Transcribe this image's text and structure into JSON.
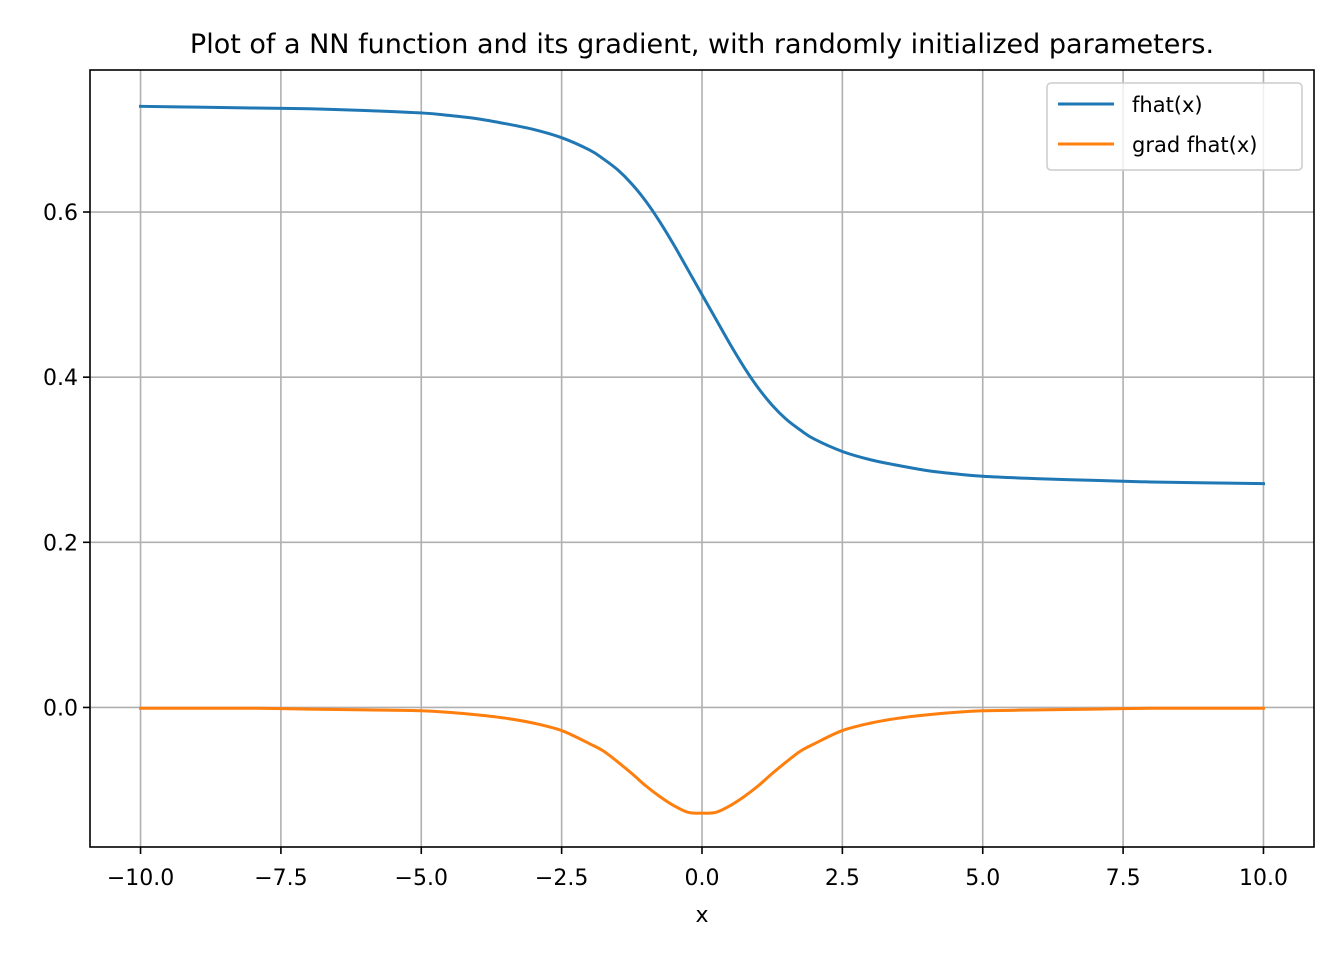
{
  "chart_data": {
    "type": "line",
    "title": "Plot of a NN function and its gradient, with randomly initialized parameters.",
    "xlabel": "x",
    "ylabel": "",
    "xlim": [
      -10.9,
      10.9
    ],
    "ylim": [
      -0.169,
      0.772
    ],
    "xticks": [
      -10.0,
      -7.5,
      -5.0,
      -2.5,
      0.0,
      2.5,
      5.0,
      7.5,
      10.0
    ],
    "xtick_labels": [
      "−10.0",
      "−7.5",
      "−5.0",
      "−2.5",
      "0.0",
      "2.5",
      "5.0",
      "7.5",
      "10.0"
    ],
    "yticks": [
      0.0,
      0.2,
      0.4,
      0.6
    ],
    "ytick_labels": [
      "0.0",
      "0.2",
      "0.4",
      "0.6"
    ],
    "grid": true,
    "legend_position": "top-right",
    "x": [
      -10,
      -9,
      -8,
      -7,
      -6,
      -5,
      -4.5,
      -4,
      -3.5,
      -3,
      -2.5,
      -2,
      -1.75,
      -1.5,
      -1.25,
      -1,
      -0.75,
      -0.5,
      -0.25,
      0,
      0.25,
      0.5,
      0.75,
      1,
      1.25,
      1.5,
      1.75,
      2,
      2.5,
      3,
      3.5,
      4,
      4.5,
      5,
      6,
      7,
      8,
      9,
      10
    ],
    "series": [
      {
        "name": "fhat(x)",
        "color": "#1f77b4",
        "values": [
          0.728,
          0.727,
          0.726,
          0.725,
          0.723,
          0.72,
          0.717,
          0.713,
          0.707,
          0.7,
          0.69,
          0.675,
          0.664,
          0.651,
          0.634,
          0.613,
          0.588,
          0.56,
          0.53,
          0.5,
          0.47,
          0.44,
          0.412,
          0.387,
          0.366,
          0.349,
          0.336,
          0.325,
          0.31,
          0.3,
          0.293,
          0.287,
          0.283,
          0.28,
          0.277,
          0.275,
          0.273,
          0.272,
          0.271
        ]
      },
      {
        "name": "grad fhat(x)",
        "color": "#ff7f0e",
        "values": [
          -0.001,
          -0.001,
          -0.001,
          -0.002,
          -0.003,
          -0.004,
          -0.006,
          -0.009,
          -0.013,
          -0.019,
          -0.028,
          -0.044,
          -0.053,
          -0.066,
          -0.08,
          -0.095,
          -0.108,
          -0.119,
          -0.127,
          -0.128,
          -0.127,
          -0.119,
          -0.108,
          -0.095,
          -0.08,
          -0.066,
          -0.053,
          -0.044,
          -0.028,
          -0.019,
          -0.013,
          -0.009,
          -0.006,
          -0.004,
          -0.003,
          -0.002,
          -0.001,
          -0.001,
          -0.001
        ]
      }
    ]
  }
}
